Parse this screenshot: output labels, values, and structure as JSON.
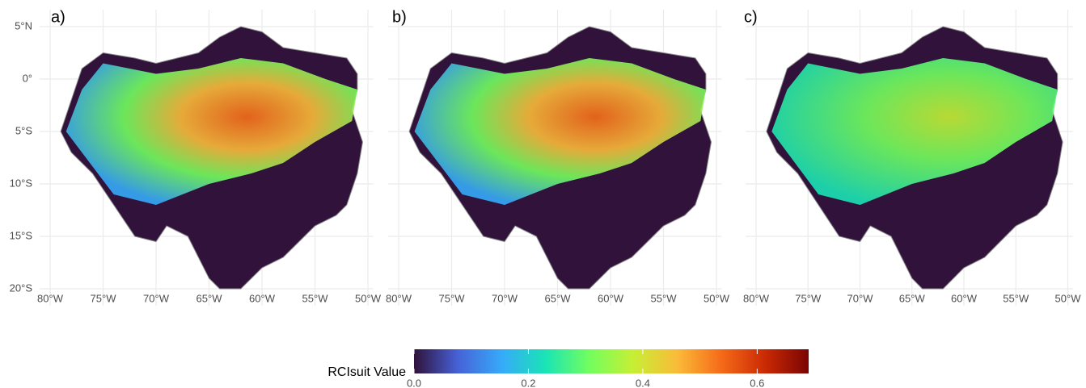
{
  "panels": [
    {
      "label": "a)"
    },
    {
      "label": "b)"
    },
    {
      "label": "c)"
    }
  ],
  "axes": {
    "xlim": [
      -81,
      -49.5
    ],
    "ylim": [
      -21,
      6
    ],
    "xticks": [
      {
        "value": -80,
        "label": "80°W"
      },
      {
        "value": -75,
        "label": "75°W"
      },
      {
        "value": -70,
        "label": "70°W"
      },
      {
        "value": -65,
        "label": "65°W"
      },
      {
        "value": -60,
        "label": "60°W"
      },
      {
        "value": -55,
        "label": "55°W"
      },
      {
        "value": -50,
        "label": "50°W"
      }
    ],
    "yticks": [
      {
        "value": 5,
        "label": "5°N"
      },
      {
        "value": 0,
        "label": "0°"
      },
      {
        "value": -5,
        "label": "5°S"
      },
      {
        "value": -10,
        "label": "10°S"
      },
      {
        "value": -15,
        "label": "15°S"
      },
      {
        "value": -20,
        "label": "20°S"
      }
    ]
  },
  "legend": {
    "title": "RCIsuit Value",
    "range": [
      0,
      0.69
    ],
    "ticks": [
      {
        "value": 0,
        "label": "0.0"
      },
      0.2,
      0.4,
      0.6
    ],
    "colors": [
      "#30123b",
      "#4662d7",
      "#36aaf9",
      "#1ae4b6",
      "#72fe5e",
      "#c7ef34",
      "#fabb39",
      "#f66b19",
      "#cb2a04",
      "#7a0403"
    ]
  }
}
